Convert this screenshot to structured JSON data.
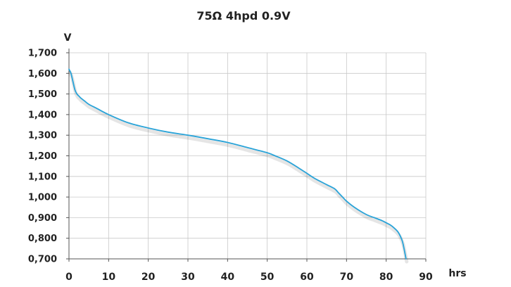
{
  "chart_data": {
    "type": "line",
    "title": "75Ω 4hpd 0.9V",
    "ylabel": "V",
    "xlabel": "hrs",
    "xlim": [
      0,
      90
    ],
    "ylim": [
      0.7,
      1.7
    ],
    "grid": true,
    "x_ticks": [
      0,
      10,
      20,
      30,
      40,
      50,
      60,
      70,
      80,
      90
    ],
    "x_tick_labels": [
      "0",
      "10",
      "20",
      "30",
      "40",
      "50",
      "60",
      "70",
      "80",
      "90"
    ],
    "y_ticks": [
      0.7,
      0.8,
      0.9,
      1.0,
      1.1,
      1.2,
      1.3,
      1.4,
      1.5,
      1.6,
      1.7
    ],
    "y_tick_labels": [
      "0,700",
      "0,800",
      "0,900",
      "1,000",
      "1,100",
      "1,200",
      "1,300",
      "1,400",
      "1,500",
      "1,600",
      "1,700"
    ],
    "line_color": "#29a3d8",
    "series": [
      {
        "x": [
          0,
          0.5,
          1,
          1.5,
          2,
          2.5,
          3,
          4,
          5,
          7,
          10,
          15,
          20,
          25,
          30,
          35,
          40,
          45,
          50,
          52,
          55,
          58,
          60,
          62,
          65,
          67,
          68,
          69,
          70,
          72,
          75,
          77,
          79,
          80,
          81,
          82,
          83,
          84,
          84.5,
          85
        ],
        "y": [
          1.62,
          1.6,
          1.56,
          1.52,
          1.5,
          1.49,
          1.48,
          1.465,
          1.45,
          1.43,
          1.4,
          1.36,
          1.335,
          1.315,
          1.3,
          1.283,
          1.265,
          1.24,
          1.215,
          1.2,
          1.175,
          1.14,
          1.115,
          1.09,
          1.06,
          1.04,
          1.02,
          1.0,
          0.98,
          0.95,
          0.915,
          0.9,
          0.885,
          0.875,
          0.865,
          0.85,
          0.83,
          0.79,
          0.75,
          0.7
        ]
      }
    ]
  }
}
